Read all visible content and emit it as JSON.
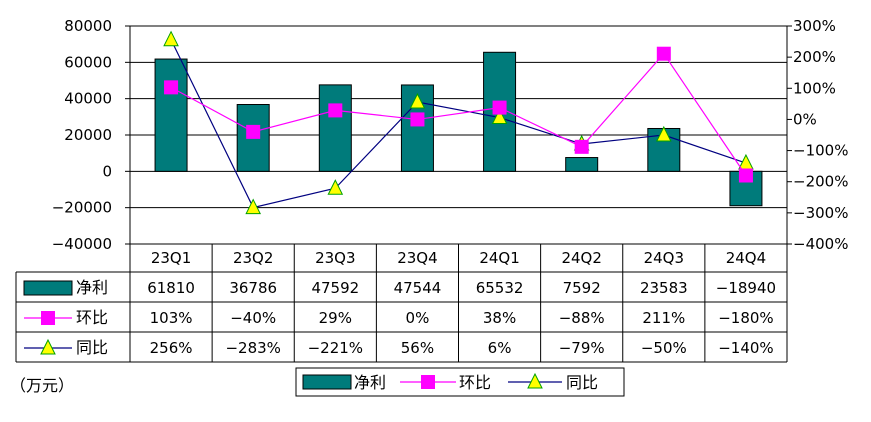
{
  "unit_label": "（万元）",
  "colors": {
    "bar": "#007b7b",
    "qoq": "#ff00ff",
    "yoy_line": "#000080",
    "yoy_marker": "#ffff00",
    "yoy_marker_stroke": "#00a000"
  },
  "chart_data": {
    "type": "bar+line",
    "categories": [
      "23Q1",
      "23Q2",
      "23Q3",
      "23Q4",
      "24Q1",
      "24Q2",
      "24Q3",
      "24Q4"
    ],
    "y_left": {
      "min": -40000,
      "max": 80000,
      "step": 20000
    },
    "y_right": {
      "min": -400,
      "max": 300,
      "step": 100,
      "suffix": "%"
    },
    "series": [
      {
        "name": "净利",
        "kind": "bar",
        "axis": "left",
        "values": [
          61810,
          36786,
          47592,
          47544,
          65532,
          7592,
          23583,
          -18940
        ],
        "labels": [
          "61810",
          "36786",
          "47592",
          "47544",
          "65532",
          "7592",
          "23583",
          "-18940"
        ]
      },
      {
        "name": "环比",
        "kind": "line",
        "axis": "right",
        "marker": "square",
        "values": [
          103,
          -40,
          29,
          0,
          38,
          -88,
          211,
          -180
        ],
        "labels": [
          "103%",
          "-40%",
          "29%",
          "0%",
          "38%",
          "-88%",
          "211%",
          "-180%"
        ]
      },
      {
        "name": "同比",
        "kind": "line",
        "axis": "right",
        "marker": "triangle",
        "values": [
          256,
          -283,
          -221,
          56,
          6,
          -79,
          -50,
          -140
        ],
        "labels": [
          "256%",
          "-283%",
          "-221%",
          "56%",
          "6%",
          "-79%",
          "-50%",
          "-140%"
        ]
      }
    ],
    "legend": [
      "净利",
      "环比",
      "同比"
    ],
    "legend_position": "bottom",
    "grid": true
  }
}
